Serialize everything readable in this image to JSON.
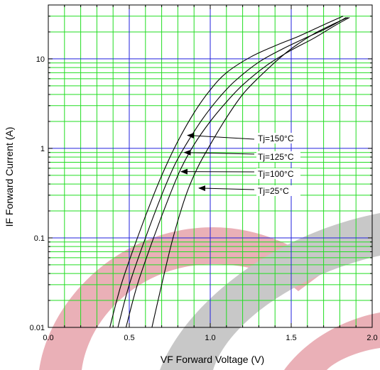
{
  "chart_data": {
    "type": "line",
    "xlabel": "VF   Forward Voltage  (V)",
    "ylabel": "IF   Forward Current  (A)",
    "xlim": [
      0.0,
      2.0
    ],
    "ylim": [
      0.01,
      40
    ],
    "y_scale": "log",
    "grid": true,
    "x_ticks": [
      {
        "value": 0.0,
        "label": "0.0"
      },
      {
        "value": 0.5,
        "label": "0.5"
      },
      {
        "value": 1.0,
        "label": "1.0"
      },
      {
        "value": 1.5,
        "label": "1.5"
      },
      {
        "value": 2.0,
        "label": "2.0"
      }
    ],
    "y_ticks": [
      {
        "value": 0.01,
        "label": "0.01"
      },
      {
        "value": 0.1,
        "label": "0.1"
      },
      {
        "value": 1,
        "label": "1"
      },
      {
        "value": 10,
        "label": "10"
      }
    ],
    "series": [
      {
        "name": "Tj=150°C",
        "x": [
          0.38,
          0.45,
          0.55,
          0.65,
          0.72,
          0.8,
          0.9,
          1.0,
          1.1,
          1.25,
          1.4,
          1.55,
          1.7,
          1.82
        ],
        "y": [
          0.01,
          0.03,
          0.1,
          0.3,
          0.6,
          1.2,
          2.5,
          4.5,
          7.0,
          10.5,
          14,
          18,
          24,
          30
        ]
      },
      {
        "name": "Tj=125°C",
        "x": [
          0.43,
          0.5,
          0.6,
          0.7,
          0.78,
          0.85,
          0.95,
          1.05,
          1.15,
          1.3,
          1.45,
          1.6,
          1.72,
          1.84
        ],
        "y": [
          0.01,
          0.03,
          0.1,
          0.3,
          0.65,
          1.1,
          2.1,
          3.6,
          5.6,
          9.2,
          13,
          17.5,
          22,
          29
        ]
      },
      {
        "name": "Tj=100°C",
        "x": [
          0.48,
          0.55,
          0.65,
          0.75,
          0.82,
          0.9,
          1.0,
          1.1,
          1.2,
          1.35,
          1.5,
          1.64,
          1.76,
          1.86
        ],
        "y": [
          0.01,
          0.03,
          0.1,
          0.3,
          0.6,
          1.1,
          2.0,
          3.3,
          5.1,
          8.5,
          12.5,
          17,
          23,
          29
        ]
      },
      {
        "name": "Tj=25°C",
        "x": [
          0.64,
          0.7,
          0.77,
          0.85,
          0.92,
          1.0,
          1.1,
          1.2,
          1.3,
          1.45,
          1.55,
          1.65,
          1.75,
          1.85
        ],
        "y": [
          0.01,
          0.03,
          0.1,
          0.3,
          0.6,
          1.1,
          2.2,
          4.0,
          6.2,
          11,
          15,
          19.5,
          24,
          29
        ]
      }
    ],
    "annotations": [
      {
        "text": "Tj=150°C",
        "arrow_to": {
          "x": 0.86,
          "y": 1.4
        }
      },
      {
        "text": "Tj=125°C",
        "arrow_to": {
          "x": 0.84,
          "y": 0.9
        }
      },
      {
        "text": "Tj=100°C",
        "arrow_to": {
          "x": 0.82,
          "y": 0.55
        }
      },
      {
        "text": "Tj=25°C",
        "arrow_to": {
          "x": 0.93,
          "y": 0.36
        }
      }
    ],
    "colors": {
      "major_grid": "#2222dd",
      "minor_grid": "#22dd22",
      "curve": "#000000",
      "watermark_red": "#e8a0a8",
      "watermark_gray": "#bdbdbd"
    }
  }
}
